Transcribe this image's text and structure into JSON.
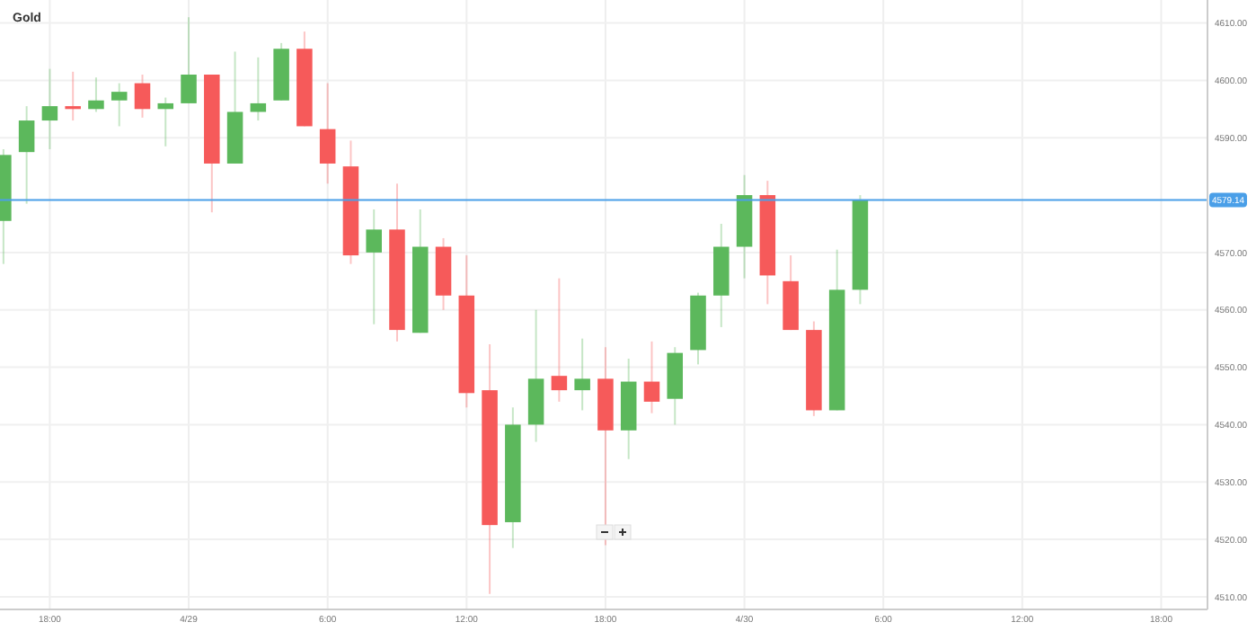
{
  "chart_data": {
    "type": "candlestick",
    "title": "Gold",
    "x": [
      "--04-28T16:00",
      "--04-28T17:00",
      "--04-28T18:00",
      "--04-28T19:00",
      "--04-28T20:00",
      "--04-28T21:00",
      "--04-28T22:00",
      "--04-28T23:00",
      "--04-29T00:00",
      "--04-29T01:00",
      "--04-29T02:00",
      "--04-29T03:00",
      "--04-29T04:00",
      "--04-29T05:00",
      "--04-29T06:00",
      "--04-29T07:00",
      "--04-29T08:00",
      "--04-29T09:00",
      "--04-29T10:00",
      "--04-29T11:00",
      "--04-29T12:00",
      "--04-29T13:00",
      "--04-29T14:00",
      "--04-29T15:00",
      "--04-29T16:00",
      "--04-29T17:00",
      "--04-29T18:00",
      "--04-29T19:00",
      "--04-29T20:00",
      "--04-29T21:00",
      "--04-29T22:00",
      "--04-29T23:00",
      "--04-30T00:00",
      "--04-30T01:00",
      "--04-30T02:00",
      "--04-30T03:00",
      "--04-30T04:00",
      "--04-30T05:00"
    ],
    "ohlc": [
      [
        4575.5,
        4588,
        4568,
        4587
      ],
      [
        4587.5,
        4595.5,
        4578.5,
        4593
      ],
      [
        4593,
        4602,
        4588,
        4595.5
      ],
      [
        4595.5,
        4601.5,
        4593,
        4595
      ],
      [
        4595,
        4600.5,
        4594.5,
        4596.5
      ],
      [
        4596.5,
        4599.5,
        4592,
        4598
      ],
      [
        4599.5,
        4601,
        4593.5,
        4595
      ],
      [
        4595,
        4597,
        4588.5,
        4596
      ],
      [
        4596,
        4611,
        4596,
        4601
      ],
      [
        4601,
        4601,
        4577,
        4585.5
      ],
      [
        4585.5,
        4605,
        4585.5,
        4594.5
      ],
      [
        4594.5,
        4604,
        4593,
        4596
      ],
      [
        4596.5,
        4606.5,
        4596.5,
        4605.5
      ],
      [
        4605.5,
        4608.5,
        4592,
        4592
      ],
      [
        4591.5,
        4599.5,
        4582,
        4585.5
      ],
      [
        4585,
        4589.5,
        4568,
        4569.5
      ],
      [
        4570,
        4577.5,
        4557.5,
        4574
      ],
      [
        4574,
        4582,
        4554.5,
        4556.5
      ],
      [
        4556,
        4577.5,
        4556,
        4571
      ],
      [
        4571,
        4572.5,
        4560,
        4562.5
      ],
      [
        4562.5,
        4569.5,
        4543,
        4545.5
      ],
      [
        4546,
        4554,
        4510.5,
        4522.5
      ],
      [
        4523,
        4543,
        4518.5,
        4540
      ],
      [
        4540,
        4560,
        4537,
        4548
      ],
      [
        4548.5,
        4565.5,
        4544,
        4546
      ],
      [
        4546,
        4555,
        4542.5,
        4548
      ],
      [
        4548,
        4553.5,
        4519,
        4539
      ],
      [
        4539,
        4551.5,
        4534,
        4547.5
      ],
      [
        4547.5,
        4554.5,
        4542,
        4544
      ],
      [
        4544.5,
        4553.5,
        4540,
        4552.5
      ],
      [
        4553,
        4563,
        4550.5,
        4562.5
      ],
      [
        4562.5,
        4575,
        4557,
        4571
      ],
      [
        4571,
        4583.5,
        4565.5,
        4580
      ],
      [
        4580,
        4582.5,
        4561,
        4566
      ],
      [
        4565,
        4569.5,
        4556.5,
        4556.5
      ],
      [
        4556.5,
        4558,
        4541.5,
        4542.5
      ],
      [
        4542.5,
        4570.5,
        4542.5,
        4563.5
      ],
      [
        4563.5,
        4580,
        4561,
        4579.14
      ]
    ],
    "colors": [
      "#5cb85c",
      "#5cb85c",
      "#5cb85c",
      "#f65a5a",
      "#5cb85c",
      "#5cb85c",
      "#f65a5a",
      "#5cb85c",
      "#5cb85c",
      "#f65a5a",
      "#5cb85c",
      "#5cb85c",
      "#5cb85c",
      "#f65a5a",
      "#f65a5a",
      "#f65a5a",
      "#5cb85c",
      "#f65a5a",
      "#5cb85c",
      "#f65a5a",
      "#f65a5a",
      "#f65a5a",
      "#5cb85c",
      "#5cb85c",
      "#f65a5a",
      "#5cb85c",
      "#f65a5a",
      "#5cb85c",
      "#f65a5a",
      "#5cb85c",
      "#5cb85c",
      "#5cb85c",
      "#5cb85c",
      "#f65a5a",
      "#f65a5a",
      "#f65a5a",
      "#5cb85c",
      "#5cb85c"
    ],
    "xlim": [
      "--04-28T15:51",
      "--04-30T20:00"
    ],
    "xticks": [
      {
        "value": "--04-28T18:00",
        "label": "18:00"
      },
      {
        "value": "--04-29T00:00",
        "label": "4/29"
      },
      {
        "value": "--04-29T06:00",
        "label": "6:00"
      },
      {
        "value": "--04-29T12:00",
        "label": "12:00"
      },
      {
        "value": "--04-29T18:00",
        "label": "18:00"
      },
      {
        "value": "--04-30T00:00",
        "label": "4/30"
      },
      {
        "value": "--04-30T06:00",
        "label": "6:00"
      },
      {
        "value": "--04-30T12:00",
        "label": "12:00"
      },
      {
        "value": "--04-30T18:00",
        "label": "18:00"
      }
    ],
    "ylim": [
      4507.8,
      4614
    ],
    "yticks": [
      {
        "value": 4510,
        "label": "4510.00"
      },
      {
        "value": 4520,
        "label": "4520.00"
      },
      {
        "value": 4530,
        "label": "4530.00"
      },
      {
        "value": 4540,
        "label": "4540.00"
      },
      {
        "value": 4550,
        "label": "4550.00"
      },
      {
        "value": 4560,
        "label": "4560.00"
      },
      {
        "value": 4570,
        "label": "4570.00"
      },
      {
        "value": 4590,
        "label": "4590.00"
      },
      {
        "value": 4600,
        "label": "4600.00"
      },
      {
        "value": 4610,
        "label": "4610.00"
      }
    ],
    "ref_lines": [
      {
        "axis": "y",
        "value": 4579.14,
        "label": "4579.14",
        "color": "#4a9fe8"
      }
    ],
    "grid": true
  }
}
